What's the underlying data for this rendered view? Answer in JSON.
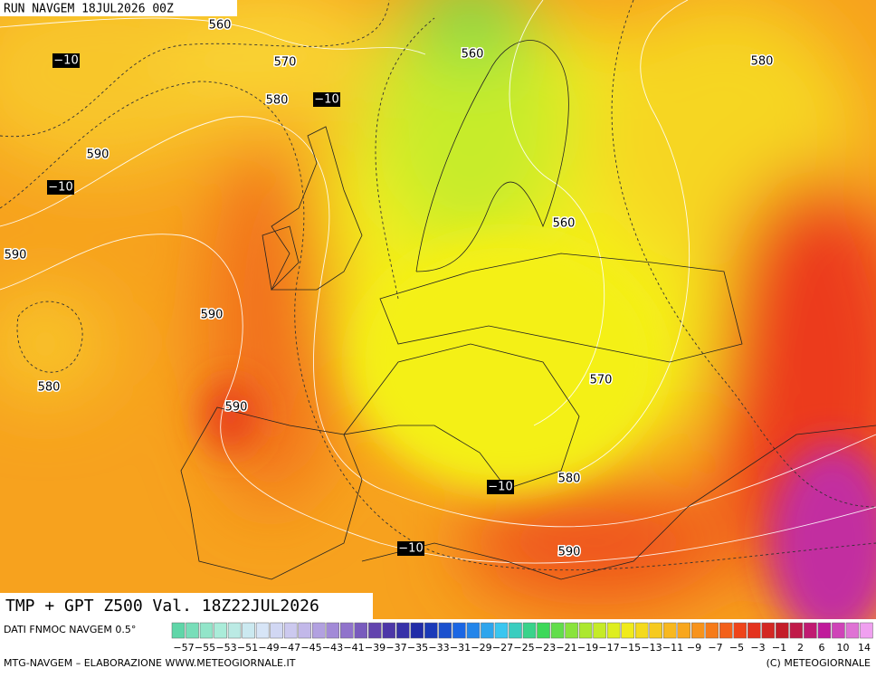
{
  "header": {
    "run": "RUN NAVGEM 18JUL2026 00Z"
  },
  "map": {
    "height_labels": [
      "560",
      "570",
      "560",
      "580",
      "580",
      "590",
      "560",
      "590",
      "590",
      "580",
      "570",
      "590",
      "580",
      "590"
    ],
    "temperature_labels": [
      "−10",
      "−10",
      "−10",
      "−10",
      "−10"
    ]
  },
  "title": "TMP + GPT Z500 Val. 18Z22JUL2026",
  "legend": {
    "source": "DATI FNMOC NAVGEM 0.5°",
    "labels": [
      "−57",
      "−55",
      "−53",
      "−51",
      "−49",
      "−47",
      "−45",
      "−43",
      "−41",
      "−39",
      "−37",
      "−35",
      "−33",
      "−31",
      "−29",
      "−27",
      "−25",
      "−23",
      "−21",
      "−19",
      "−17",
      "−15",
      "−13",
      "−11",
      "−9",
      "−7",
      "−5",
      "−3",
      "−1",
      "2",
      "6",
      "10",
      "14"
    ]
  },
  "footer": {
    "left": "MTG-NAVGEM – ELABORAZIONE WWW.METEOGIORNALE.IT",
    "right": "(C) METEOGIORNALE"
  }
}
